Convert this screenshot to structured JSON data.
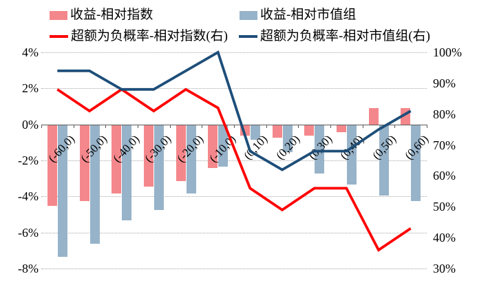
{
  "legend": {
    "items": [
      {
        "label": "收益-相对指数",
        "swatch": "bar",
        "color": "#F4878B"
      },
      {
        "label": "收益-相对市值组",
        "swatch": "bar",
        "color": "#97B3C9"
      },
      {
        "label": "超额为负概率-相对指数(右)",
        "swatch": "line",
        "color": "#FE0000"
      },
      {
        "label": "超额为负概率-相对市值组(右)",
        "swatch": "line",
        "color": "#1E4E79"
      }
    ]
  },
  "chart_data": {
    "type": "bar+line combo",
    "categories": [
      "(-60,0)",
      "(-50,0)",
      "(-40,0)",
      "(-30,0)",
      "(-20,0)",
      "(-10,0)",
      "(0,10)",
      "(0,20)",
      "(0,30)",
      "(0,40)",
      "(0,50)",
      "(0,60)"
    ],
    "series": [
      {
        "name": "收益-相对指数",
        "key": "return-rel-index",
        "type": "bar",
        "axis": "left",
        "color": "#F4878B",
        "values": [
          -4.5,
          -4.2,
          -3.8,
          -3.4,
          -3.1,
          -2.4,
          -0.6,
          -0.7,
          -0.6,
          -0.4,
          0.9,
          0.9
        ]
      },
      {
        "name": "收益-相对市值组",
        "key": "return-rel-sizegroup",
        "type": "bar",
        "axis": "left",
        "color": "#97B3C9",
        "values": [
          -7.3,
          -6.6,
          -5.3,
          -4.7,
          -3.8,
          -2.3,
          -0.8,
          -1.5,
          -2.7,
          -3.3,
          -3.9,
          -4.2
        ]
      },
      {
        "name": "超额为负概率-相对指数(右)",
        "key": "negprob-rel-index",
        "type": "line",
        "axis": "right",
        "color": "#FE0000",
        "values": [
          88,
          81,
          88,
          81,
          88,
          82,
          56,
          49,
          56,
          56,
          36,
          43
        ]
      },
      {
        "name": "超额为负概率-相对市值组(右)",
        "key": "negprob-rel-sizegroup",
        "type": "line",
        "axis": "right",
        "color": "#1E4E79",
        "values": [
          94,
          94,
          88,
          88,
          94,
          100,
          68,
          62,
          68,
          68,
          75,
          81
        ]
      }
    ],
    "left_axis": {
      "min": -8,
      "max": 4,
      "step": 2,
      "unit": "%",
      "tick_labels": [
        "4%",
        "2%",
        "0%",
        "-2%",
        "-4%",
        "-6%",
        "-8%"
      ]
    },
    "right_axis": {
      "min": 30,
      "max": 100,
      "step": 10,
      "unit": "%",
      "tick_labels": [
        "100%",
        "90%",
        "80%",
        "70%",
        "60%",
        "50%",
        "40%",
        "30%"
      ]
    },
    "grid": "horizontal dotted, solid zero line, legend top two-column, no title"
  }
}
